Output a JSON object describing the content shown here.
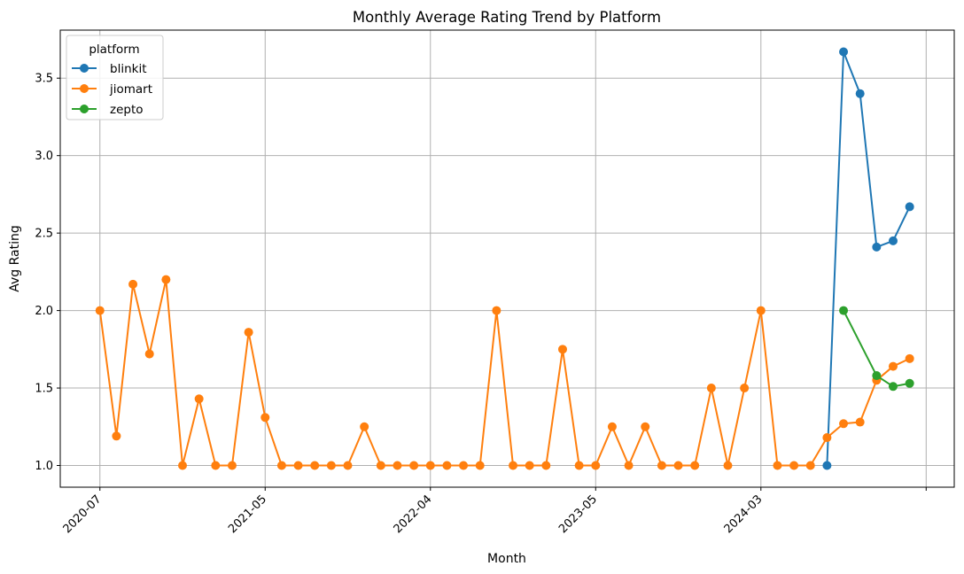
{
  "chart_data": {
    "type": "line",
    "title": "Monthly Average Rating Trend by Platform",
    "xlabel": "Month",
    "ylabel": "Avg Rating",
    "ylim": [
      0.86,
      3.81
    ],
    "yticks": [
      1.0,
      1.5,
      2.0,
      2.5,
      3.0,
      3.5
    ],
    "ytick_labels": [
      "1.0",
      "1.5",
      "2.0",
      "2.5",
      "3.0",
      "3.5"
    ],
    "xlim": [
      -2.4,
      51.7
    ],
    "xticks": [
      0,
      10,
      20,
      30,
      40,
      50
    ],
    "xtick_labels": [
      "2020-07",
      "2021-05",
      "2022-04",
      "2023-05",
      "2024-03",
      ""
    ],
    "grid": true,
    "legend": {
      "title": "platform",
      "position": "top-left"
    },
    "series": [
      {
        "name": "blinkit",
        "color": "#1f77b4",
        "points": [
          [
            44,
            1.0
          ],
          [
            45,
            3.67
          ],
          [
            46,
            3.4
          ],
          [
            47,
            2.41
          ],
          [
            48,
            2.45
          ],
          [
            49,
            2.67
          ]
        ]
      },
      {
        "name": "jiomart",
        "color": "#ff7f0e",
        "points": [
          [
            0,
            2.0
          ],
          [
            1,
            1.19
          ],
          [
            2,
            2.17
          ],
          [
            3,
            1.72
          ],
          [
            4,
            2.2
          ],
          [
            5,
            1.0
          ],
          [
            6,
            1.43
          ],
          [
            7,
            1.0
          ],
          [
            8,
            1.0
          ],
          [
            9,
            1.86
          ],
          [
            10,
            1.31
          ],
          [
            11,
            1.0
          ],
          [
            12,
            1.0
          ],
          [
            13,
            1.0
          ],
          [
            14,
            1.0
          ],
          [
            15,
            1.0
          ],
          [
            16,
            1.25
          ],
          [
            17,
            1.0
          ],
          [
            18,
            1.0
          ],
          [
            19,
            1.0
          ],
          [
            20,
            1.0
          ],
          [
            21,
            1.0
          ],
          [
            22,
            1.0
          ],
          [
            23,
            1.0
          ],
          [
            24,
            2.0
          ],
          [
            25,
            1.0
          ],
          [
            26,
            1.0
          ],
          [
            27,
            1.0
          ],
          [
            28,
            1.75
          ],
          [
            29,
            1.0
          ],
          [
            30,
            1.0
          ],
          [
            31,
            1.25
          ],
          [
            32,
            1.0
          ],
          [
            33,
            1.25
          ],
          [
            34,
            1.0
          ],
          [
            35,
            1.0
          ],
          [
            36,
            1.0
          ],
          [
            37,
            1.5
          ],
          [
            38,
            1.0
          ],
          [
            39,
            1.5
          ],
          [
            40,
            2.0
          ],
          [
            41,
            1.0
          ],
          [
            42,
            1.0
          ],
          [
            43,
            1.0
          ],
          [
            44,
            1.18
          ],
          [
            45,
            1.27
          ],
          [
            46,
            1.28
          ],
          [
            47,
            1.55
          ],
          [
            48,
            1.64
          ],
          [
            49,
            1.69
          ]
        ]
      },
      {
        "name": "zepto",
        "color": "#2ca02c",
        "points": [
          [
            45,
            2.0
          ],
          [
            47,
            1.58
          ],
          [
            48,
            1.51
          ],
          [
            49,
            1.53
          ]
        ]
      }
    ]
  }
}
